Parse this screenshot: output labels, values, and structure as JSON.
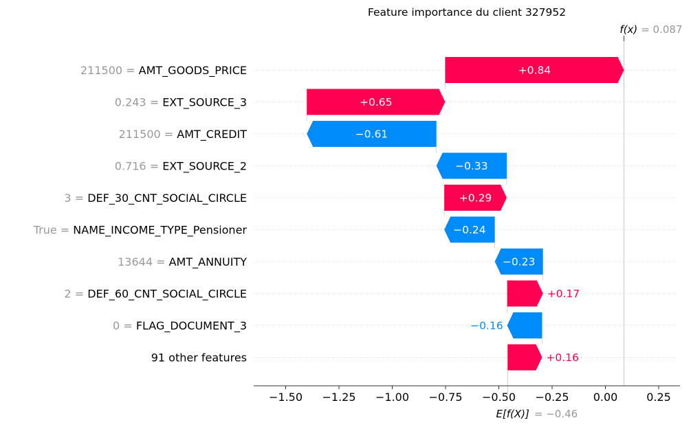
{
  "chart_data": {
    "type": "waterfall",
    "title": "Feature importance du client 327952",
    "fx_label": "f(x)",
    "fx_value_text": "= 0.087",
    "efx_label": "E[f(X)]",
    "efx_value_text": "= −0.46",
    "base_value": -0.459,
    "final_value": 0.087,
    "xlim": [
      -1.65,
      0.35
    ],
    "xticks": [
      -1.5,
      -1.25,
      -1.0,
      -0.75,
      -0.5,
      -0.25,
      0.0,
      0.25
    ],
    "xtick_labels": [
      "−1.50",
      "−1.25",
      "−1.00",
      "−0.75",
      "−0.50",
      "−0.25",
      "0.00",
      "0.25"
    ],
    "features": [
      {
        "value": "211500",
        "eq": " = ",
        "name": "AMT_GOODS_PRICE",
        "start": -0.752,
        "end": 0.087,
        "label": "+0.84"
      },
      {
        "value": "0.243",
        "eq": " = ",
        "name": "EXT_SOURCE_3",
        "start": -1.401,
        "end": -0.752,
        "label": "+0.65"
      },
      {
        "value": "211500",
        "eq": " = ",
        "name": "AMT_CREDIT",
        "start": -0.793,
        "end": -1.401,
        "label": "−0.61"
      },
      {
        "value": "0.716",
        "eq": " = ",
        "name": "EXT_SOURCE_2",
        "start": -0.463,
        "end": -0.793,
        "label": "−0.33"
      },
      {
        "value": "3",
        "eq": " = ",
        "name": "DEF_30_CNT_SOCIAL_CIRCLE",
        "start": -0.756,
        "end": -0.463,
        "label": "+0.29"
      },
      {
        "value": "True",
        "eq": " = ",
        "name": "NAME_INCOME_TYPE_Pensioner",
        "start": -0.519,
        "end": -0.756,
        "label": "−0.24"
      },
      {
        "value": "13644",
        "eq": " = ",
        "name": "AMT_ANNUITY",
        "start": -0.293,
        "end": -0.519,
        "label": "−0.23"
      },
      {
        "value": "2",
        "eq": " = ",
        "name": "DEF_60_CNT_SOCIAL_CIRCLE",
        "start": -0.461,
        "end": -0.293,
        "label": "+0.17"
      },
      {
        "value": "0",
        "eq": " = ",
        "name": "FLAG_DOCUMENT_3",
        "start": -0.297,
        "end": -0.461,
        "label": "−0.16"
      },
      {
        "value": "",
        "eq": "",
        "name": "91 other features",
        "start": -0.459,
        "end": -0.297,
        "label": "+0.16"
      }
    ],
    "colors": {
      "positive": "#ff0051",
      "negative": "#008bfb",
      "value_gray": "#999999"
    }
  }
}
